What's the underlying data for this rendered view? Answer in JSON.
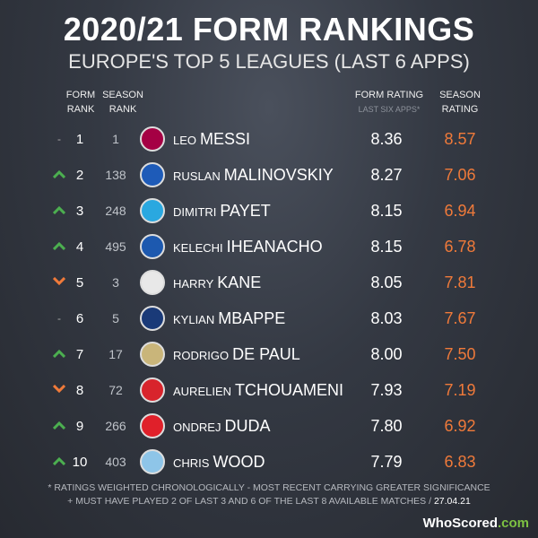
{
  "title": "2020/21 FORM RANKINGS",
  "subtitle": "EUROPE'S TOP 5 LEAGUES (LAST 6 APPS)",
  "headers": {
    "form_rank": [
      "FORM",
      "RANK"
    ],
    "season_rank": [
      "SEASON",
      "RANK"
    ],
    "form_rating": "FORM RATING",
    "form_rating_sub": "LAST SIX APPS*",
    "season_rating": [
      "SEASON",
      "RATING"
    ]
  },
  "colors": {
    "up": "#4caf50",
    "down": "#f07a3a",
    "season_rating": "#f07a3a"
  },
  "rows": [
    {
      "trend": "same",
      "trend_symbol": "-",
      "form_rank": "1",
      "season_rank": "1",
      "first": "LEO",
      "last": "MESSI",
      "form_rating": "8.36",
      "season_rating": "8.57",
      "badge_color": "#a50044"
    },
    {
      "trend": "up",
      "trend_symbol": "",
      "form_rank": "2",
      "season_rank": "138",
      "first": "RUSLAN",
      "last": "MALINOVSKIY",
      "form_rating": "8.27",
      "season_rating": "7.06",
      "badge_color": "#1e5bb8"
    },
    {
      "trend": "up",
      "trend_symbol": "",
      "form_rank": "3",
      "season_rank": "248",
      "first": "DIMITRI",
      "last": "PAYET",
      "form_rating": "8.15",
      "season_rating": "6.94",
      "badge_color": "#2aa8e0"
    },
    {
      "trend": "up",
      "trend_symbol": "",
      "form_rank": "4",
      "season_rank": "495",
      "first": "KELECHI",
      "last": "IHEANACHO",
      "form_rating": "8.15",
      "season_rating": "6.78",
      "badge_color": "#1d59af"
    },
    {
      "trend": "down",
      "trend_symbol": "",
      "form_rank": "5",
      "season_rank": "3",
      "first": "HARRY",
      "last": "KANE",
      "form_rating": "8.05",
      "season_rating": "7.81",
      "badge_color": "#e8e8e8"
    },
    {
      "trend": "same",
      "trend_symbol": "-",
      "form_rank": "6",
      "season_rank": "5",
      "first": "KYLIAN",
      "last": "MBAPPE",
      "form_rating": "8.03",
      "season_rating": "7.67",
      "badge_color": "#1a3a78"
    },
    {
      "trend": "up",
      "trend_symbol": "",
      "form_rank": "7",
      "season_rank": "17",
      "first": "RODRIGO",
      "last": "DE PAUL",
      "form_rating": "8.00",
      "season_rating": "7.50",
      "badge_color": "#c9b57a"
    },
    {
      "trend": "down",
      "trend_symbol": "",
      "form_rank": "8",
      "season_rank": "72",
      "first": "AURELIEN",
      "last": "TCHOUAMENI",
      "form_rating": "7.93",
      "season_rating": "7.19",
      "badge_color": "#d8242c"
    },
    {
      "trend": "up",
      "trend_symbol": "",
      "form_rank": "9",
      "season_rank": "266",
      "first": "ONDREJ",
      "last": "DUDA",
      "form_rating": "7.80",
      "season_rating": "6.92",
      "badge_color": "#e0202a"
    },
    {
      "trend": "up",
      "trend_symbol": "",
      "form_rank": "10",
      "season_rank": "403",
      "first": "CHRIS",
      "last": "WOOD",
      "form_rating": "7.79",
      "season_rating": "6.83",
      "badge_color": "#8ec5e8"
    }
  ],
  "note_line1": "* RATINGS WEIGHTED CHRONOLOGICALLY - MOST RECENT CARRYING GREATER SIGNIFICANCE",
  "note_line2": "+ MUST HAVE PLAYED 2 OF LAST 3 AND 6 OF THE LAST 8 AVAILABLE MATCHES / ",
  "note_date": "27.04.21",
  "logo": {
    "who": "WhoScored",
    ".com": ".com"
  }
}
